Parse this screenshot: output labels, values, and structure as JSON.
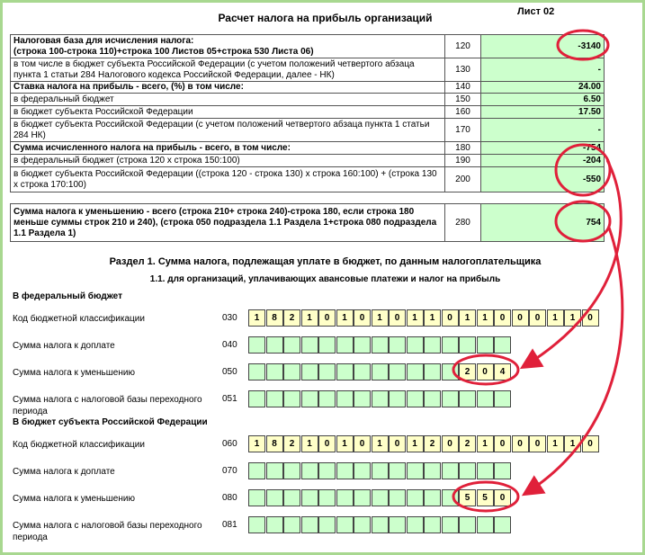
{
  "header": {
    "title": "Расчет налога на прибыль организаций",
    "sheet": "Лист 02"
  },
  "table": {
    "rows": [
      {
        "label": [
          "Налоговая база для исчисления налога:",
          "(строка 100-строка 110)+строка 100 Листов 05+строка 530 Листа 06)"
        ],
        "code": "120",
        "value": "-3140",
        "bold": true
      },
      {
        "label": "в том числе в бюджет субъекта Российской Федерации (с учетом положений четвертого абзаца пункта 1 статьи 284 Налогового кодекса Российской Федерации, далее - НК)",
        "code": "130",
        "value": "-"
      },
      {
        "label": "Ставка налога на прибыль - всего, (%) в том числе:",
        "code": "140",
        "value": "24.00",
        "bold": true
      },
      {
        "label": "в федеральный бюджет",
        "code": "150",
        "value": "6.50"
      },
      {
        "label": "в бюджет субъекта Российской Федерации",
        "code": "160",
        "value": "17.50"
      },
      {
        "label": "в бюджет субъекта Российской Федерации (с учетом положений четвертого абзаца пункта 1 статьи 284 НК)",
        "code": "170",
        "value": "-"
      },
      {
        "label": "Сумма исчисленного налога на прибыль - всего, в том числе:",
        "code": "180",
        "value": "-754",
        "bold": true
      },
      {
        "label": "в федеральный бюджет (строка 120 х строка 150:100)",
        "code": "190",
        "value": "-204"
      },
      {
        "label": "в бюджет субъекта Российской Федерации ((строка 120 - строка 130) х строка 160:100) + (строка 130 х строка 170:100)",
        "code": "200",
        "value": "-550"
      }
    ]
  },
  "summary": {
    "label": "Сумма налога к уменьшению - всего (строка 210+ строка 240)-строка 180, если строка 180 меньше суммы строк 210 и 240), (строка 050 подраздела 1.1 Раздела 1+строка 080 подраздела 1.1 Раздела 1)",
    "code": "280",
    "value": "754",
    "bold": true
  },
  "section": {
    "title": "Раздел 1. Сумма налога, подлежащая уплате в бюджет, по данным налогоплательщика",
    "subtitle": "1.1. для организаций, уплачивающих авансовые платежи и налог на прибыль",
    "groups": [
      {
        "title": "В федеральный бюджет",
        "rows": [
          {
            "label": "Код бюджетной классификации",
            "code": "030",
            "cells": [
              "1",
              "8",
              "2",
              "1",
              "0",
              "1",
              "0",
              "1",
              "0",
              "1",
              "1",
              "0",
              "1",
              "1",
              "0",
              "0",
              "0",
              "1",
              "1",
              "0"
            ]
          },
          {
            "label": "Сумма налога к доплате",
            "code": "040",
            "cells": [
              null,
              null,
              null,
              null,
              null,
              null,
              null,
              null,
              null,
              null,
              null,
              null,
              null,
              null,
              null
            ]
          },
          {
            "label": "Сумма налога к уменьшению",
            "code": "050",
            "cells": [
              null,
              null,
              null,
              null,
              null,
              null,
              null,
              null,
              null,
              null,
              null,
              null,
              "2",
              "0",
              "4"
            ]
          },
          {
            "label": "Сумма налога с налоговой базы переходного периода",
            "code": "051",
            "cells": [
              null,
              null,
              null,
              null,
              null,
              null,
              null,
              null,
              null,
              null,
              null,
              null,
              null,
              null,
              null
            ]
          }
        ]
      },
      {
        "title": "В бюджет субъекта Российской Федерации",
        "rows": [
          {
            "label": "Код бюджетной классификации",
            "code": "060",
            "cells": [
              "1",
              "8",
              "2",
              "1",
              "0",
              "1",
              "0",
              "1",
              "0",
              "1",
              "2",
              "0",
              "2",
              "1",
              "0",
              "0",
              "0",
              "1",
              "1",
              "0"
            ]
          },
          {
            "label": "Сумма налога к доплате",
            "code": "070",
            "cells": [
              null,
              null,
              null,
              null,
              null,
              null,
              null,
              null,
              null,
              null,
              null,
              null,
              null,
              null,
              null
            ]
          },
          {
            "label": "Сумма налога к уменьшению",
            "code": "080",
            "cells": [
              null,
              null,
              null,
              null,
              null,
              null,
              null,
              null,
              null,
              null,
              null,
              null,
              "5",
              "5",
              "0"
            ]
          },
          {
            "label": "Сумма налога с налоговой базы переходного периода",
            "code": "081",
            "cells": [
              null,
              null,
              null,
              null,
              null,
              null,
              null,
              null,
              null,
              null,
              null,
              null,
              null,
              null,
              null
            ]
          }
        ]
      }
    ]
  }
}
